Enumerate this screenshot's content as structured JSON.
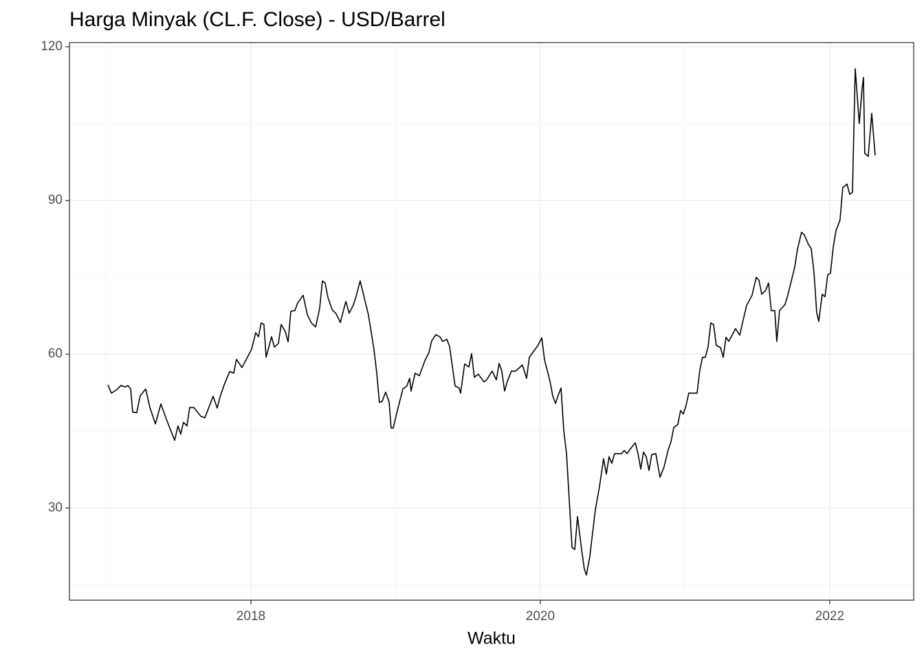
{
  "chart_data": {
    "type": "line",
    "title": "Harga Minyak (CL.F. Close) - USD/Barrel",
    "x_label": "Waktu",
    "xlim": [
      2016.746,
      2022.58
    ],
    "xticks": [
      2018,
      2020,
      2022
    ],
    "xminor": [
      2017,
      2019,
      2021
    ],
    "ylim": [
      12.0,
      120.8
    ],
    "yticks": [
      30,
      60,
      90,
      120
    ],
    "yminor": [
      15,
      45,
      75,
      105
    ],
    "grid": true,
    "series": [
      {
        "color": "#000000",
        "x": [
          2017.012,
          2017.036,
          2017.074,
          2017.102,
          2017.131,
          2017.15,
          2017.169,
          2017.183,
          2017.211,
          2017.235,
          2017.273,
          2017.302,
          2017.34,
          2017.378,
          2017.416,
          2017.473,
          2017.496,
          2017.515,
          2017.534,
          2017.558,
          2017.577,
          2017.606,
          2017.653,
          2017.682,
          2017.701,
          2017.739,
          2017.767,
          2017.786,
          2017.815,
          2017.853,
          2017.881,
          2017.9,
          2017.938,
          2017.976,
          2018.005,
          2018.033,
          2018.052,
          2018.071,
          2018.09,
          2018.105,
          2018.143,
          2018.162,
          2018.19,
          2018.209,
          2018.238,
          2018.257,
          2018.276,
          2018.304,
          2018.323,
          2018.361,
          2018.39,
          2018.418,
          2018.447,
          2018.475,
          2018.494,
          2018.513,
          2018.532,
          2018.561,
          2018.589,
          2018.618,
          2018.656,
          2018.679,
          2018.708,
          2018.727,
          2018.755,
          2018.812,
          2018.85,
          2018.869,
          2018.888,
          2018.907,
          2018.931,
          2018.955,
          2018.969,
          2018.983,
          2019.021,
          2019.05,
          2019.078,
          2019.097,
          2019.107,
          2019.135,
          2019.164,
          2019.202,
          2019.23,
          2019.249,
          2019.278,
          2019.306,
          2019.325,
          2019.354,
          2019.373,
          2019.411,
          2019.439,
          2019.449,
          2019.477,
          2019.506,
          2019.525,
          2019.544,
          2019.572,
          2019.61,
          2019.629,
          2019.667,
          2019.696,
          2019.715,
          2019.734,
          2019.753,
          2019.772,
          2019.8,
          2019.829,
          2019.876,
          2019.905,
          2019.924,
          2019.952,
          2019.981,
          2020.01,
          2020.029,
          2020.067,
          2020.086,
          2020.105,
          2020.124,
          2020.143,
          2020.162,
          2020.181,
          2020.219,
          2020.238,
          2020.257,
          2020.285,
          2020.304,
          2020.318,
          2020.342,
          2020.361,
          2020.38,
          2020.409,
          2020.437,
          2020.456,
          2020.475,
          2020.494,
          2020.513,
          2020.561,
          2020.58,
          2020.599,
          2020.627,
          2020.656,
          2020.675,
          2020.694,
          2020.713,
          2020.732,
          2020.751,
          2020.77,
          2020.798,
          2020.827,
          2020.855,
          2020.884,
          2020.903,
          2020.922,
          2020.95,
          2020.969,
          2020.988,
          2021.007,
          2021.026,
          2021.083,
          2021.102,
          2021.121,
          2021.14,
          2021.159,
          2021.178,
          2021.197,
          2021.216,
          2021.245,
          2021.264,
          2021.283,
          2021.302,
          2021.349,
          2021.378,
          2021.397,
          2021.425,
          2021.463,
          2021.492,
          2021.511,
          2021.53,
          2021.558,
          2021.577,
          2021.596,
          2021.62,
          2021.634,
          2021.653,
          2021.691,
          2021.71,
          2021.758,
          2021.777,
          2021.805,
          2021.824,
          2021.853,
          2021.872,
          2021.891,
          2021.91,
          2021.924,
          2021.948,
          2021.967,
          2021.986,
          2022.005,
          2022.024,
          2022.043,
          2022.071,
          2022.09,
          2022.119,
          2022.138,
          2022.157,
          2022.176,
          2022.204,
          2022.223,
          2022.233,
          2022.242,
          2022.266,
          2022.29,
          2022.314
        ],
        "values": [
          54.0,
          52.4,
          53.1,
          53.9,
          53.6,
          53.9,
          53.2,
          48.7,
          48.6,
          51.9,
          53.2,
          49.6,
          46.4,
          50.3,
          47.3,
          43.2,
          46.0,
          44.4,
          46.7,
          46.0,
          49.6,
          49.6,
          47.9,
          47.6,
          49.0,
          51.8,
          49.5,
          51.6,
          54.0,
          56.6,
          56.3,
          59.0,
          57.4,
          59.4,
          61.0,
          64.2,
          63.4,
          66.1,
          65.8,
          59.4,
          63.4,
          61.4,
          62.1,
          65.8,
          64.4,
          62.4,
          68.4,
          68.5,
          70.0,
          71.5,
          67.7,
          66.1,
          65.3,
          68.9,
          74.3,
          73.9,
          71.1,
          68.7,
          67.9,
          66.2,
          70.3,
          68.0,
          69.6,
          71.3,
          74.3,
          67.7,
          61.0,
          56.5,
          50.6,
          50.8,
          52.6,
          50.7,
          45.6,
          45.6,
          50.0,
          53.2,
          53.8,
          55.3,
          52.8,
          56.3,
          55.8,
          58.7,
          60.3,
          62.6,
          63.8,
          63.4,
          62.5,
          62.9,
          61.5,
          53.8,
          53.4,
          52.4,
          58.1,
          57.5,
          60.1,
          55.5,
          56.1,
          54.6,
          55.0,
          56.7,
          55.0,
          58.2,
          56.7,
          52.8,
          54.7,
          56.7,
          56.7,
          57.9,
          55.3,
          59.4,
          60.5,
          61.6,
          63.2,
          58.9,
          54.7,
          51.8,
          50.4,
          52.0,
          53.4,
          45.1,
          40.6,
          22.3,
          21.9,
          28.3,
          21.9,
          18.1,
          16.9,
          20.5,
          25.1,
          29.6,
          34.2,
          39.6,
          36.6,
          40.0,
          38.7,
          40.6,
          40.6,
          41.2,
          40.6,
          41.7,
          42.7,
          40.6,
          37.6,
          40.9,
          40.0,
          37.3,
          40.4,
          40.6,
          36.0,
          38.0,
          41.4,
          42.9,
          45.7,
          46.3,
          49.0,
          48.3,
          50.0,
          52.4,
          52.4,
          56.9,
          59.4,
          59.4,
          61.4,
          66.1,
          65.8,
          61.7,
          61.3,
          59.4,
          63.3,
          62.5,
          65.0,
          63.7,
          66.1,
          69.5,
          71.5,
          75.0,
          74.4,
          71.7,
          72.5,
          73.9,
          68.5,
          68.5,
          62.5,
          68.5,
          69.7,
          71.5,
          77.0,
          80.5,
          83.8,
          83.3,
          81.4,
          80.6,
          76.0,
          68.1,
          66.4,
          71.7,
          71.2,
          75.5,
          75.8,
          80.9,
          84.1,
          86.2,
          92.5,
          93.2,
          91.2,
          91.6,
          115.7,
          105.0,
          111.7,
          114.0,
          99.2,
          98.6,
          107.0,
          98.8
        ]
      }
    ]
  }
}
